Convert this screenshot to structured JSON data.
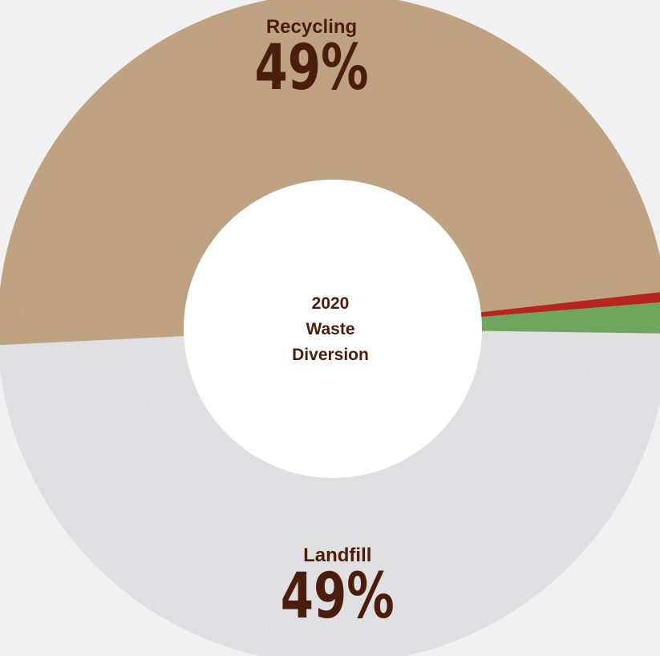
{
  "chart_data": {
    "type": "pie",
    "center_label": [
      "2020",
      "Waste",
      "Diversion"
    ],
    "slices": [
      {
        "label": "Landfill",
        "value": 49,
        "value_label": "49%",
        "color": "#e4e4e6",
        "show_label": true
      },
      {
        "label": "Recycling",
        "value": 49,
        "value_label": "49%",
        "color": "#c2a584",
        "show_label": true
      },
      {
        "label": "",
        "value": 0.5,
        "value_label": "",
        "color": "#b5261e",
        "show_label": false
      },
      {
        "label": "",
        "value": 1.5,
        "value_label": "",
        "color": "#6ea65d",
        "show_label": false
      }
    ]
  }
}
